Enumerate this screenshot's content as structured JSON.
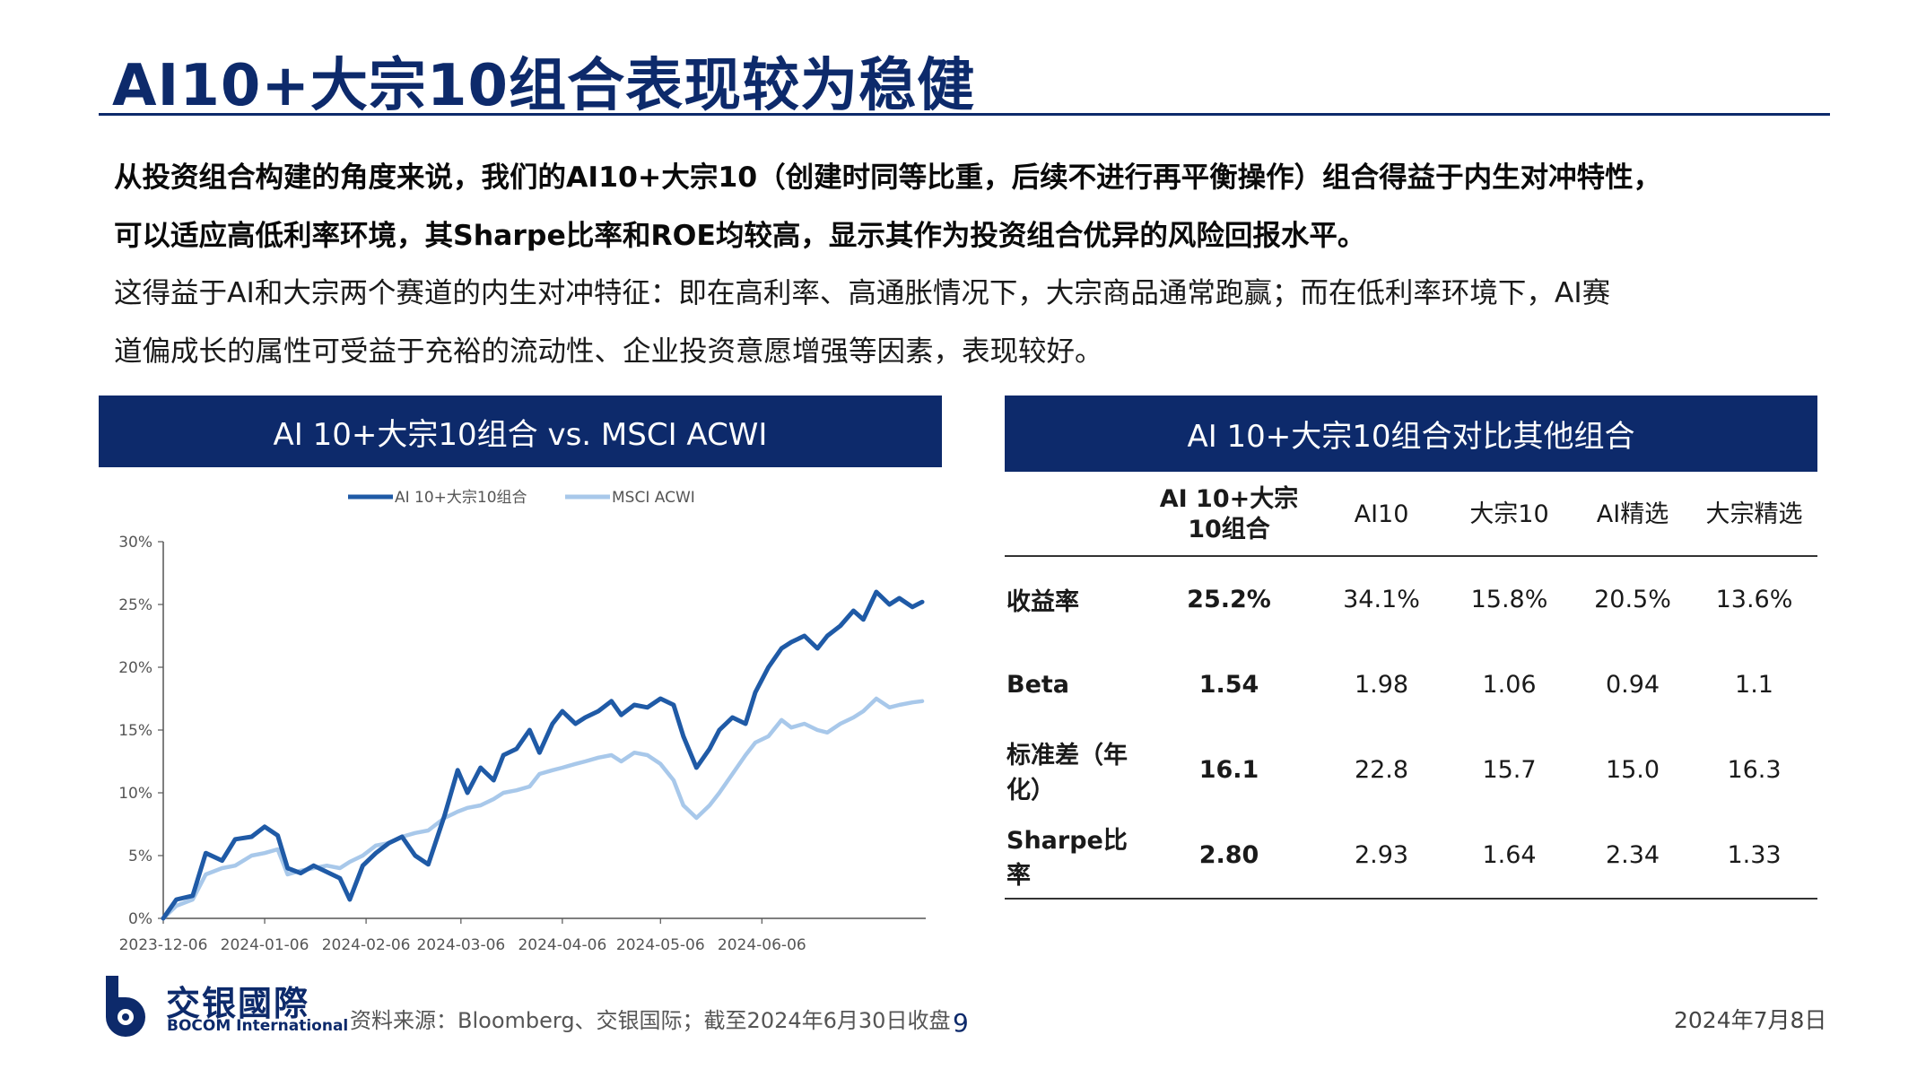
{
  "title": "AI10+大宗10组合表现较为稳健",
  "intro": {
    "line1": "从投资组合构建的角度来说，我们的AI10+大宗10（创建时同等比重，后续不进行再平衡操作）组合得益于内生对冲特性，",
    "line2": "可以适应高低利率环境，其Sharpe比率和ROE均较高，显示其作为投资组合优异的风险回报水平。",
    "line3": "这得益于AI和大宗两个赛道的内生对冲特征：即在高利率、高通胀情况下，大宗商品通常跑赢；而在低利率环境下，AI赛",
    "line4": "道偏成长的属性可受益于充裕的流动性、企业投资意愿增强等因素，表现较好。"
  },
  "left_panel": {
    "title": "AI 10+大宗10组合 vs. MSCI ACWI"
  },
  "right_panel": {
    "title": "AI 10+大宗10组合对比其他组合"
  },
  "chart_data": {
    "type": "line",
    "title": "AI 10+大宗10组合 vs. MSCI ACWI",
    "x_tick_labels": [
      "2023-12-06",
      "2024-01-06",
      "2024-02-06",
      "2024-03-06",
      "2024-04-06",
      "2024-05-06",
      "2024-06-06"
    ],
    "y_tick_labels": [
      "0%",
      "5%",
      "10%",
      "15%",
      "20%",
      "25%",
      "30%"
    ],
    "ylim": [
      0,
      30
    ],
    "y_unit": "%",
    "grid": false,
    "legend_position": "top-center",
    "series": [
      {
        "name": "AI 10+大宗10组合",
        "color": "#1f5aa6",
        "points": [
          [
            "2023-12-06",
            0.0
          ],
          [
            "2023-12-10",
            1.5
          ],
          [
            "2023-12-15",
            1.8
          ],
          [
            "2023-12-19",
            5.2
          ],
          [
            "2023-12-24",
            4.6
          ],
          [
            "2023-12-28",
            6.3
          ],
          [
            "2024-01-02",
            6.5
          ],
          [
            "2024-01-06",
            7.3
          ],
          [
            "2024-01-10",
            6.6
          ],
          [
            "2024-01-13",
            4.0
          ],
          [
            "2024-01-17",
            3.6
          ],
          [
            "2024-01-21",
            4.2
          ],
          [
            "2024-01-25",
            3.7
          ],
          [
            "2024-01-29",
            3.2
          ],
          [
            "2024-02-01",
            1.5
          ],
          [
            "2024-02-05",
            4.2
          ],
          [
            "2024-02-09",
            5.2
          ],
          [
            "2024-02-13",
            6.0
          ],
          [
            "2024-02-17",
            6.5
          ],
          [
            "2024-02-21",
            5.0
          ],
          [
            "2024-02-25",
            4.3
          ],
          [
            "2024-03-01",
            8.2
          ],
          [
            "2024-03-05",
            11.8
          ],
          [
            "2024-03-08",
            10.0
          ],
          [
            "2024-03-12",
            12.0
          ],
          [
            "2024-03-16",
            11.0
          ],
          [
            "2024-03-19",
            13.0
          ],
          [
            "2024-03-23",
            13.5
          ],
          [
            "2024-03-27",
            15.0
          ],
          [
            "2024-03-30",
            13.2
          ],
          [
            "2024-04-03",
            15.5
          ],
          [
            "2024-04-06",
            16.5
          ],
          [
            "2024-04-10",
            15.5
          ],
          [
            "2024-04-13",
            16.0
          ],
          [
            "2024-04-17",
            16.5
          ],
          [
            "2024-04-21",
            17.3
          ],
          [
            "2024-04-24",
            16.2
          ],
          [
            "2024-04-28",
            17.0
          ],
          [
            "2024-05-02",
            16.8
          ],
          [
            "2024-05-06",
            17.5
          ],
          [
            "2024-05-10",
            17.0
          ],
          [
            "2024-05-13",
            14.5
          ],
          [
            "2024-05-17",
            12.0
          ],
          [
            "2024-05-21",
            13.5
          ],
          [
            "2024-05-24",
            15.0
          ],
          [
            "2024-05-28",
            16.0
          ],
          [
            "2024-06-01",
            15.5
          ],
          [
            "2024-06-04",
            18.0
          ],
          [
            "2024-06-08",
            20.0
          ],
          [
            "2024-06-12",
            21.5
          ],
          [
            "2024-06-15",
            22.0
          ],
          [
            "2024-06-19",
            22.5
          ],
          [
            "2024-06-23",
            21.5
          ],
          [
            "2024-06-26",
            22.5
          ],
          [
            "2024-06-30",
            23.3
          ],
          [
            "2024-07-04",
            24.5
          ],
          [
            "2024-07-07",
            23.8
          ],
          [
            "2024-07-11",
            26.0
          ],
          [
            "2024-07-15",
            25.0
          ],
          [
            "2024-07-18",
            25.5
          ],
          [
            "2024-07-22",
            24.8
          ],
          [
            "2024-07-25",
            25.2
          ]
        ]
      },
      {
        "name": "MSCI ACWI",
        "color": "#a8c8ea",
        "points": [
          [
            "2023-12-06",
            0.0
          ],
          [
            "2023-12-10",
            1.0
          ],
          [
            "2023-12-15",
            1.5
          ],
          [
            "2023-12-19",
            3.5
          ],
          [
            "2023-12-24",
            4.0
          ],
          [
            "2023-12-28",
            4.2
          ],
          [
            "2024-01-02",
            5.0
          ],
          [
            "2024-01-06",
            5.2
          ],
          [
            "2024-01-10",
            5.5
          ],
          [
            "2024-01-13",
            3.5
          ],
          [
            "2024-01-17",
            3.8
          ],
          [
            "2024-01-21",
            4.0
          ],
          [
            "2024-01-25",
            4.2
          ],
          [
            "2024-01-29",
            4.0
          ],
          [
            "2024-02-01",
            4.5
          ],
          [
            "2024-02-05",
            5.0
          ],
          [
            "2024-02-09",
            5.8
          ],
          [
            "2024-02-13",
            6.0
          ],
          [
            "2024-02-17",
            6.5
          ],
          [
            "2024-02-21",
            6.8
          ],
          [
            "2024-02-25",
            7.0
          ],
          [
            "2024-03-01",
            8.0
          ],
          [
            "2024-03-05",
            8.5
          ],
          [
            "2024-03-08",
            8.8
          ],
          [
            "2024-03-12",
            9.0
          ],
          [
            "2024-03-16",
            9.5
          ],
          [
            "2024-03-19",
            10.0
          ],
          [
            "2024-03-23",
            10.2
          ],
          [
            "2024-03-27",
            10.5
          ],
          [
            "2024-03-30",
            11.5
          ],
          [
            "2024-04-03",
            11.8
          ],
          [
            "2024-04-06",
            12.0
          ],
          [
            "2024-04-10",
            12.3
          ],
          [
            "2024-04-13",
            12.5
          ],
          [
            "2024-04-17",
            12.8
          ],
          [
            "2024-04-21",
            13.0
          ],
          [
            "2024-04-24",
            12.5
          ],
          [
            "2024-04-28",
            13.2
          ],
          [
            "2024-05-02",
            13.0
          ],
          [
            "2024-05-06",
            12.3
          ],
          [
            "2024-05-10",
            11.0
          ],
          [
            "2024-05-13",
            9.0
          ],
          [
            "2024-05-17",
            8.0
          ],
          [
            "2024-05-21",
            9.0
          ],
          [
            "2024-05-24",
            10.0
          ],
          [
            "2024-05-28",
            11.5
          ],
          [
            "2024-06-01",
            13.0
          ],
          [
            "2024-06-04",
            14.0
          ],
          [
            "2024-06-08",
            14.5
          ],
          [
            "2024-06-12",
            15.8
          ],
          [
            "2024-06-15",
            15.2
          ],
          [
            "2024-06-19",
            15.5
          ],
          [
            "2024-06-23",
            15.0
          ],
          [
            "2024-06-26",
            14.8
          ],
          [
            "2024-06-30",
            15.5
          ],
          [
            "2024-07-04",
            16.0
          ],
          [
            "2024-07-07",
            16.5
          ],
          [
            "2024-07-11",
            17.5
          ],
          [
            "2024-07-15",
            16.8
          ],
          [
            "2024-07-18",
            17.0
          ],
          [
            "2024-07-22",
            17.2
          ],
          [
            "2024-07-25",
            17.3
          ]
        ]
      }
    ]
  },
  "table": {
    "columns": [
      "",
      "AI 10+大宗10组合",
      "AI10",
      "大宗10",
      "AI精选",
      "大宗精选"
    ],
    "rows": [
      {
        "metric": "收益率",
        "values": [
          "25.2%",
          "34.1%",
          "15.8%",
          "20.5%",
          "13.6%"
        ]
      },
      {
        "metric": "Beta",
        "values": [
          "1.54",
          "1.98",
          "1.06",
          "0.94",
          "1.1"
        ]
      },
      {
        "metric": "标准差（年化）",
        "values": [
          "16.1",
          "22.8",
          "15.7",
          "15.0",
          "16.3"
        ]
      },
      {
        "metric": "Sharpe比率",
        "values": [
          "2.80",
          "2.93",
          "1.64",
          "2.34",
          "1.33"
        ]
      }
    ]
  },
  "footer": {
    "logo_cn": "交银國際",
    "logo_en": "BOCOM International",
    "source": "资料来源：Bloomberg、交银国际；截至2024年6月30日收盘",
    "page": "9",
    "date": "2024年7月8日"
  },
  "colors": {
    "brand_navy": "#0d2a6b",
    "series_dark": "#1f5aa6",
    "series_light": "#a8c8ea"
  }
}
